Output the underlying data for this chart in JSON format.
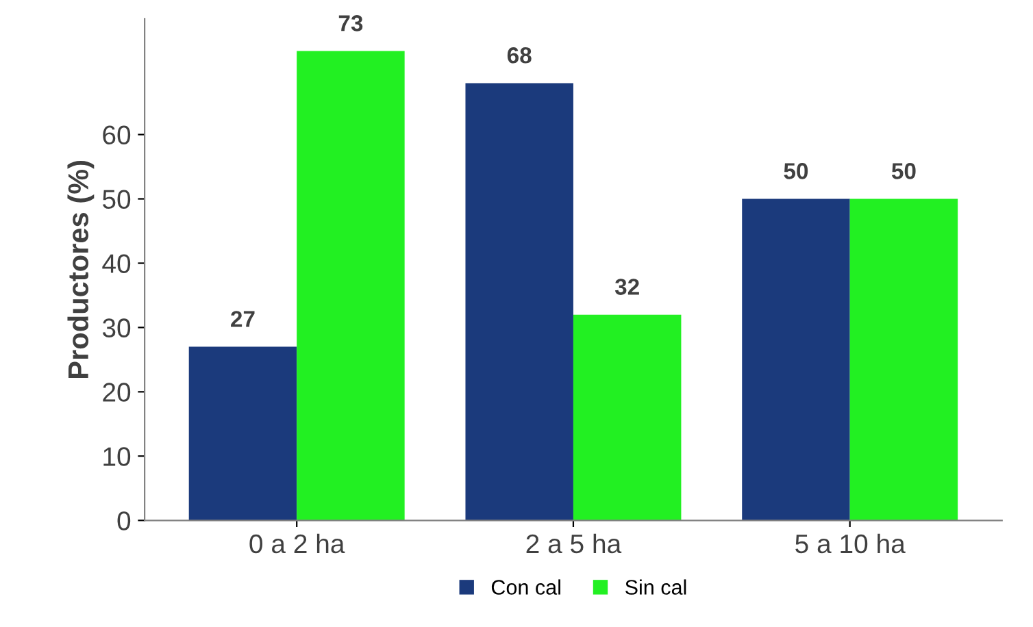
{
  "chart_data": {
    "type": "bar",
    "ylabel": "Productores (%)",
    "categories": [
      "0 a 2 ha",
      "2 a 5 ha",
      "5 a 10 ha"
    ],
    "series": [
      {
        "name": "Con cal",
        "color": "#1b3a7c",
        "values": [
          27,
          68,
          50
        ]
      },
      {
        "name": "Sin cal",
        "color": "#22f022",
        "values": [
          73,
          32,
          50
        ]
      }
    ],
    "ylim": [
      0,
      78
    ],
    "yticks": [
      0,
      10,
      20,
      30,
      40,
      50,
      60
    ],
    "data_labels": true,
    "grid": false,
    "legend": "bottom"
  }
}
